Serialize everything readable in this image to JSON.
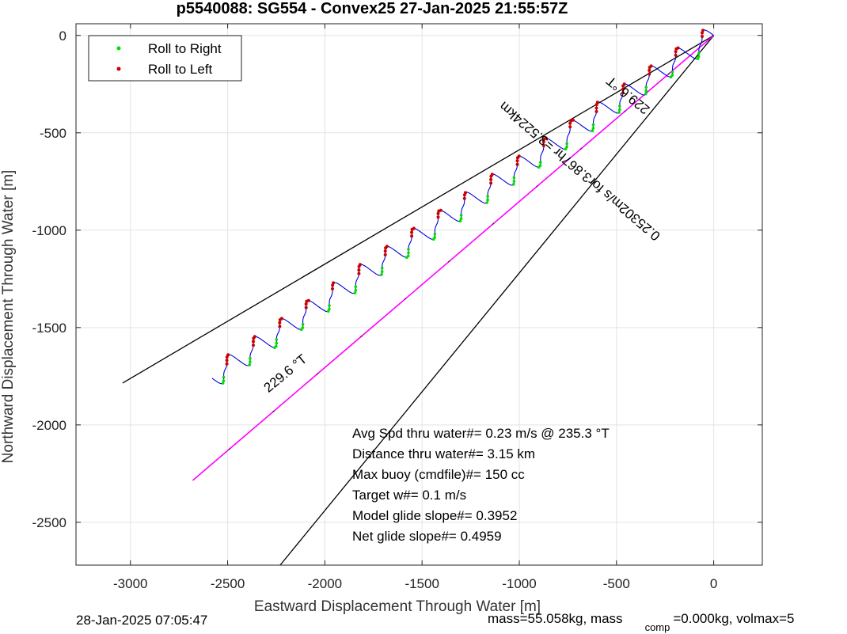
{
  "chart_data": {
    "type": "line",
    "title": "p5540088: SG554 - Convex25 27-Jan-2025 21:55:57Z",
    "xlabel": "Eastward Displacement Through Water [m]",
    "ylabel": "Northward Displacement Through Water [m]",
    "xlim": [
      -3280,
      250
    ],
    "ylim": [
      -2720,
      60
    ],
    "xticks": [
      -3000,
      -2500,
      -2000,
      -1500,
      -1000,
      -500,
      0
    ],
    "yticks": [
      0,
      -500,
      -1000,
      -1500,
      -2000,
      -2500
    ],
    "xtick_labels": [
      "-3000",
      "-2500",
      "-2000",
      "-1500",
      "-1000",
      "-500",
      "0"
    ],
    "ytick_labels": [
      "0",
      "-500",
      "-1000",
      "-1500",
      "-2000",
      "-2500"
    ],
    "grid": true,
    "legend_position": "top-left",
    "legend": [
      {
        "label": "Roll to Right",
        "color": "#00dd00"
      },
      {
        "label": "Roll to Left",
        "color": "#dd0000"
      }
    ],
    "series": [
      {
        "color": "#000000",
        "x": [
          0,
          -3040
        ],
        "y": [
          0,
          -1785
        ]
      },
      {
        "color": "#000000",
        "x": [
          0,
          -2230
        ],
        "y": [
          0,
          -2720
        ]
      },
      {
        "color": "#ff00ff",
        "x": [
          0,
          -2680
        ],
        "y": [
          0,
          -2285
        ]
      },
      {
        "color": "#0000dd",
        "x": [
          0,
          -2580
        ],
        "y": [
          0,
          -1760
        ]
      }
    ],
    "track_wave": {
      "amplitude_m": 45,
      "cycles": 19
    },
    "annotations": {
      "stats": [
        "Avg Spd thru water#=  0.23 m/s @ 235.3        °T",
        "Distance thru water#=  3.15 km",
        "Max buoy (cmdfile)#= 150 cc",
        "Target w#= 0.1 m/s",
        "Model glide slope#= 0.3952",
        "Net glide slope#= 0.4959"
      ],
      "heading_upper": "229.6 °T",
      "heading_lower": "229.6 °T",
      "speed_label": "0.25302m/s for3.867hr =3.5224km"
    }
  },
  "footer": {
    "timestamp": "28-Jan-2025 07:05:47",
    "mass_prefix": "mass=55.058kg, mass",
    "mass_sub": "comp",
    "mass_suffix": "=0.000kg, volmax=5"
  },
  "colors": {
    "grid": "#e3e3e3",
    "track": "#0000dd",
    "mean_line": "#ff00ff",
    "roll_right": "#00dd00",
    "roll_left": "#cc0000"
  }
}
